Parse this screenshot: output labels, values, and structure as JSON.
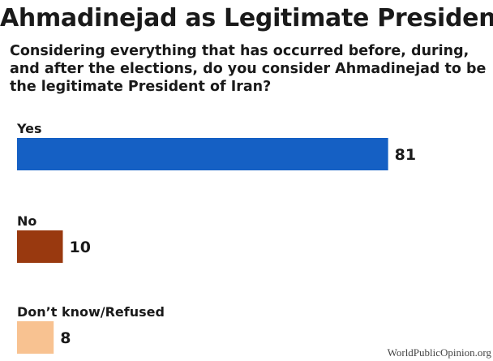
{
  "chart_data": {
    "type": "bar",
    "orientation": "horizontal",
    "title": "Ahmadinejad as Legitimate President",
    "subtitle": "Considering everything that has occurred before, during, and after the elections, do you consider Ahmadinejad to be the legitimate President of Iran?",
    "categories": [
      "Yes",
      "No",
      "Don’t know/Refused"
    ],
    "values": [
      81,
      10,
      8
    ],
    "colors": [
      "#1560c4",
      "#99390f",
      "#f8c291"
    ],
    "value_labels": [
      "81",
      "10",
      "8"
    ],
    "xlim": [
      0,
      100
    ],
    "grid": false,
    "legend": "none"
  },
  "source": "WorldPublicOpinion.org"
}
